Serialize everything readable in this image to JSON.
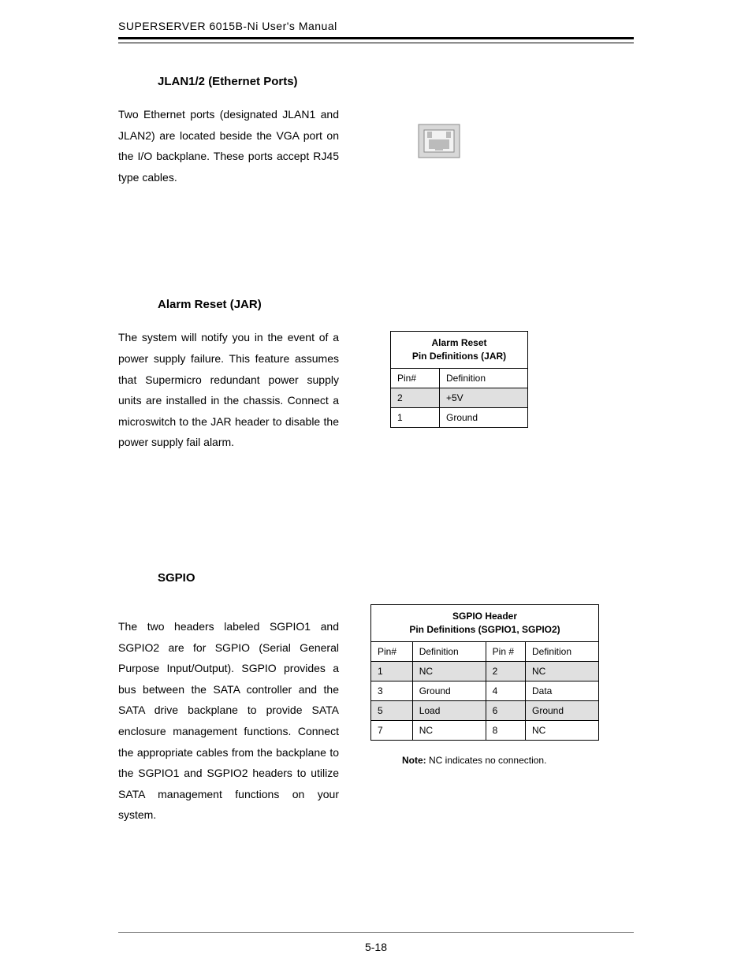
{
  "header": "SUPERSERVER 6015B-Ni User's Manual",
  "page_number": "5-18",
  "jlan": {
    "title": "JLAN1/2 (Ethernet Ports)",
    "body": "Two Ethernet ports (designated JLAN1 and JLAN2) are located beside the VGA port on the I/O backplane.  These ports accept RJ45 type cables."
  },
  "jar": {
    "title": "Alarm Reset (JAR)",
    "body": "The system will notify you in the event of a power supply failure.  This feature assumes that Supermicro redundant power supply units are installed in the chassis.  Connect a microswitch to the JAR header to disable the power supply fail alarm.",
    "table": {
      "title_l1": "Alarm Reset",
      "title_l2": "Pin Definitions (JAR)",
      "col1": "Pin#",
      "col2": "Definition",
      "rows": [
        {
          "pin": "2",
          "def": "+5V",
          "shade": true
        },
        {
          "pin": "1",
          "def": "Ground",
          "shade": false
        }
      ]
    }
  },
  "sgpio": {
    "title": "SGPIO",
    "body": "The two headers labeled SGPIO1 and SGPIO2 are for SGPIO (Serial General Purpose Input/Output). SGPIO provides a bus between the SATA controller and the SATA drive backplane to provide SATA enclosure management functions.  Connect the appropriate cables from the backplane to the SGPIO1 and SGPIO2 headers to utilize SATA management functions on your system.",
    "table": {
      "title_l1": "SGPIO Header",
      "title_l2": "Pin Definitions (SGPIO1, SGPIO2)",
      "col1": "Pin#",
      "col2": "Definition",
      "col3": "Pin #",
      "col4": "Definition",
      "rows": [
        {
          "p1": "1",
          "d1": "NC",
          "p2": "2",
          "d2": "NC",
          "shade": true
        },
        {
          "p1": "3",
          "d1": "Ground",
          "p2": "4",
          "d2": "Data",
          "shade": false
        },
        {
          "p1": "5",
          "d1": "Load",
          "p2": "6",
          "d2": "Ground",
          "shade": true
        },
        {
          "p1": "7",
          "d1": "NC",
          "p2": "8",
          "d2": "NC",
          "shade": false
        }
      ]
    },
    "note_label": "Note:",
    "note_text": " NC indicates no connection."
  },
  "style": {
    "background_color": "#ffffff",
    "text_color": "#000000",
    "shade_row_color": "#e0e0e0",
    "border_color": "#000000",
    "body_font_size_pt": 11,
    "title_font_size_pt": 11,
    "table_font_size_pt": 9,
    "font_family": "Arial"
  }
}
